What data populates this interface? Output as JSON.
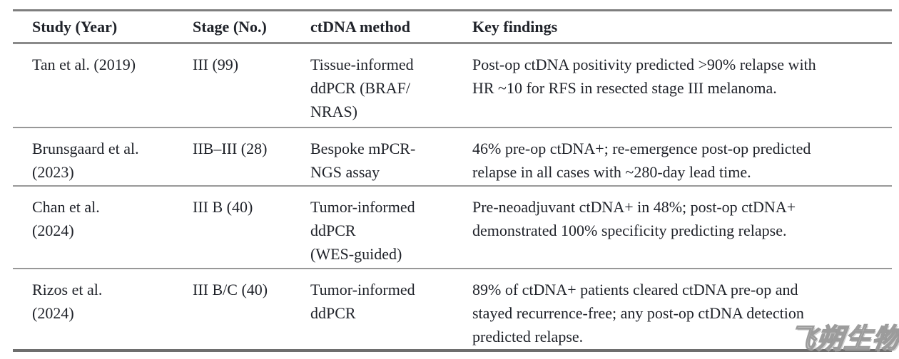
{
  "page": {
    "background": "#ffffff"
  },
  "table": {
    "columns": [
      "Study (Year)",
      "Stage (No.)",
      "ctDNA method",
      "Key findings"
    ],
    "rows": [
      {
        "study": "Tan et al. (2019)",
        "stage": "III (99)",
        "method": "Tissue-informed\nddPCR (BRAF/\nNRAS)",
        "findings": "Post-op ctDNA positivity predicted >90% relapse with\nHR ~10 for RFS in resected stage III melanoma."
      },
      {
        "study": "Brunsgaard et al.\n(2023)",
        "stage": "IIB–III (28)",
        "method": "Bespoke mPCR-\nNGS assay",
        "findings": "46% pre-op ctDNA+; re-emergence post-op predicted\nrelapse in all cases with ~280-day lead time."
      },
      {
        "study": "Chan et al.\n(2024)",
        "stage": "III B (40)",
        "method": "Tumor-informed\nddPCR\n(WES-guided)",
        "findings": "Pre-neoadjuvant ctDNA+ in 48%; post-op ctDNA+\ndemonstrated 100% specificity predicting relapse."
      },
      {
        "study": "Rizos et al.\n(2024)",
        "stage": "III B/C (40)",
        "method": "Tumor-informed\nddPCR",
        "findings": "89% of ctDNA+ patients cleared ctDNA pre-op and\nstayed recurrence-free; any post-op ctDNA detection\npredicted relapse."
      }
    ]
  },
  "watermark": {
    "text": "飞朔生物"
  },
  "colors": {
    "text": "#20232a",
    "rule_top": "#7e7e7e",
    "rule_header": "#8a8a8a",
    "rule_inner": "#989898",
    "rule_bottom": "#6e6e6e",
    "background": "#ffffff",
    "watermark_outline": "#919191"
  }
}
